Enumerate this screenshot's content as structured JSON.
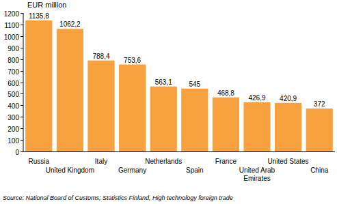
{
  "chart_data": {
    "type": "bar",
    "y_label": "EUR million",
    "source": "Source: National Board of Customs; Statistics Finland, High technology foreign trade",
    "categories": [
      "Russia",
      "United Kingdom",
      "Italy",
      "Germany",
      "Netherlands",
      "Spain",
      "France",
      "United Arab Emirates",
      "United States",
      "China"
    ],
    "values": [
      1135.8,
      1062.2,
      788.4,
      753.6,
      563.1,
      545,
      468.8,
      426.9,
      420.9,
      372
    ],
    "value_labels": [
      "1135,8",
      "1062,2",
      "788,4",
      "753,6",
      "563,1",
      "545",
      "468,8",
      "426,9",
      "420,9",
      "372"
    ],
    "color": "#f7a23f",
    "ylim": [
      0,
      1200
    ],
    "yticks": [
      0,
      100,
      200,
      300,
      400,
      500,
      600,
      700,
      800,
      900,
      1000,
      1100,
      1200
    ],
    "grid": false,
    "data_labels": true
  }
}
